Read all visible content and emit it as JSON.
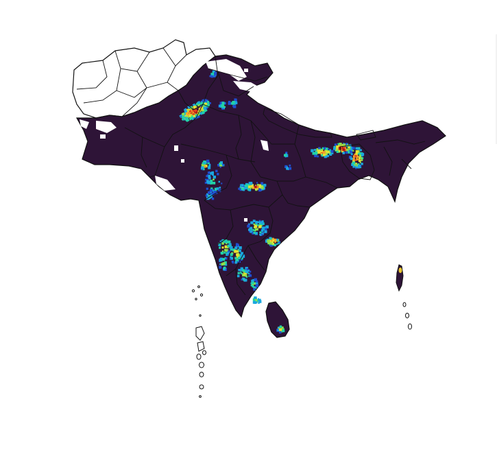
{
  "map": {
    "region": "South Asia",
    "colors": {
      "background": "#ffffff",
      "land_fill": "#2e1437",
      "border": "#111111",
      "unfilled_fill": "#ffffff",
      "hotspot_scale": [
        "#1f4fd0",
        "#1aa7e0",
        "#22d3a6",
        "#8ee04a",
        "#e8e232",
        "#f4a12a",
        "#e2411f",
        "#b01515"
      ]
    },
    "hotspot_regions": [
      "punjab-indus-plain",
      "gangetic-plain-east",
      "bangladesh-delta",
      "gujarat-maharashtra",
      "central-india",
      "deccan-east",
      "south-india",
      "sri-lanka-north"
    ]
  }
}
